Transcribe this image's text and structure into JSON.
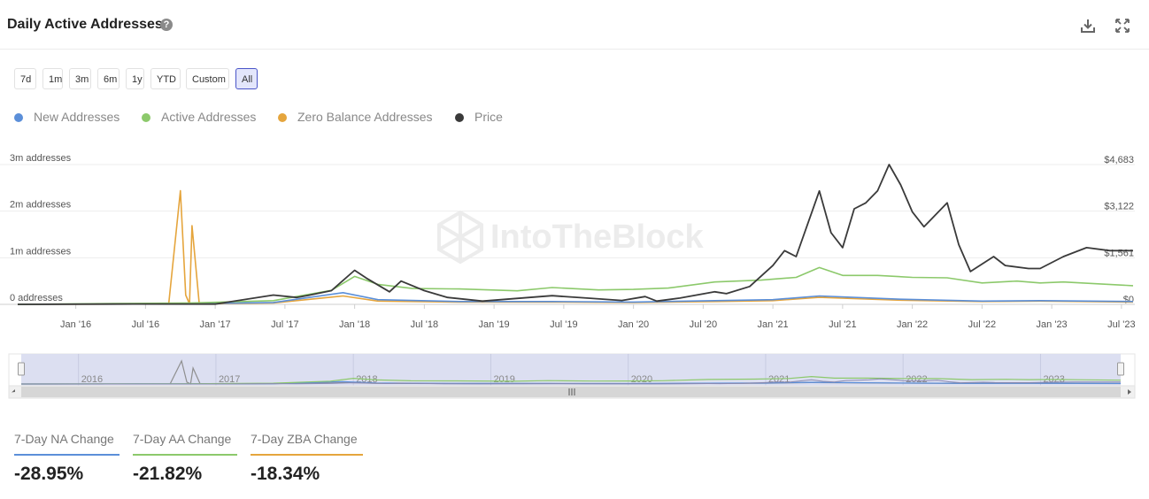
{
  "header": {
    "title": "Daily Active Addresses",
    "help_icon": "question-circle-icon",
    "download_icon": "download-icon",
    "fullscreen_icon": "expand-icon"
  },
  "range_buttons": [
    {
      "label": "7d"
    },
    {
      "label": "1m"
    },
    {
      "label": "3m"
    },
    {
      "label": "6m"
    },
    {
      "label": "1y"
    },
    {
      "label": "YTD"
    },
    {
      "label": "Custom"
    },
    {
      "label": "All",
      "active": true
    }
  ],
  "legend": [
    {
      "label": "New Addresses",
      "color": "#5b8fd9"
    },
    {
      "label": "Active Addresses",
      "color": "#8cc96b"
    },
    {
      "label": "Zero Balance Addresses",
      "color": "#e5a53d"
    },
    {
      "label": "Price",
      "color": "#3a3a3a"
    }
  ],
  "watermark": "IntoTheBlock",
  "chart_data": {
    "type": "line",
    "title": "Daily Active Addresses",
    "x_ticks": [
      "Jan '16",
      "Jul '16",
      "Jan '17",
      "Jul '17",
      "Jan '18",
      "Jul '18",
      "Jan '19",
      "Jul '19",
      "Jan '20",
      "Jul '20",
      "Jan '21",
      "Jul '21",
      "Jan '22",
      "Jul '22",
      "Jan '23",
      "Jul '23"
    ],
    "x_range": [
      "2015-08",
      "2023-08"
    ],
    "y_left": {
      "ticks": [
        "0 addresses",
        "1m addresses",
        "2m addresses",
        "3m addresses"
      ],
      "range": [
        0,
        3000000
      ]
    },
    "y_right": {
      "ticks": [
        "$0",
        "$1,561",
        "$3,122",
        "$4,683"
      ],
      "range": [
        0,
        4683
      ]
    },
    "grid": true,
    "legend_position": "top-left",
    "series": [
      {
        "name": "New Addresses",
        "axis": "left",
        "color": "#5b8fd9",
        "points": [
          [
            "2015-08",
            0
          ],
          [
            "2016-06",
            10000
          ],
          [
            "2016-11",
            15000
          ],
          [
            "2017-06",
            40000
          ],
          [
            "2017-12",
            250000
          ],
          [
            "2018-03",
            100000
          ],
          [
            "2018-10",
            60000
          ],
          [
            "2019-06",
            60000
          ],
          [
            "2020-01",
            50000
          ],
          [
            "2020-08",
            80000
          ],
          [
            "2021-01",
            100000
          ],
          [
            "2021-05",
            180000
          ],
          [
            "2021-12",
            110000
          ],
          [
            "2022-07",
            70000
          ],
          [
            "2022-12",
            80000
          ],
          [
            "2023-08",
            60000
          ]
        ]
      },
      {
        "name": "Active Addresses",
        "axis": "left",
        "color": "#8cc96b",
        "points": [
          [
            "2015-08",
            0
          ],
          [
            "2016-06",
            20000
          ],
          [
            "2016-11",
            30000
          ],
          [
            "2017-06",
            80000
          ],
          [
            "2017-11",
            300000
          ],
          [
            "2018-01",
            600000
          ],
          [
            "2018-03",
            430000
          ],
          [
            "2018-06",
            340000
          ],
          [
            "2018-10",
            330000
          ],
          [
            "2019-03",
            290000
          ],
          [
            "2019-06",
            360000
          ],
          [
            "2019-10",
            310000
          ],
          [
            "2020-01",
            320000
          ],
          [
            "2020-04",
            350000
          ],
          [
            "2020-08",
            480000
          ],
          [
            "2020-12",
            520000
          ],
          [
            "2021-03",
            580000
          ],
          [
            "2021-05",
            790000
          ],
          [
            "2021-07",
            620000
          ],
          [
            "2021-10",
            620000
          ],
          [
            "2022-01",
            580000
          ],
          [
            "2022-04",
            570000
          ],
          [
            "2022-07",
            460000
          ],
          [
            "2022-10",
            500000
          ],
          [
            "2022-12",
            460000
          ],
          [
            "2023-02",
            480000
          ],
          [
            "2023-05",
            440000
          ],
          [
            "2023-08",
            400000
          ]
        ]
      },
      {
        "name": "Zero Balance Addresses",
        "axis": "left",
        "color": "#e5a53d",
        "points": [
          [
            "2015-08",
            0
          ],
          [
            "2016-09",
            10000
          ],
          [
            "2016-10",
            2440000
          ],
          [
            "2016-10-15",
            200000
          ],
          [
            "2016-10-25",
            10000
          ],
          [
            "2016-11",
            1690000
          ],
          [
            "2016-11-20",
            10000
          ],
          [
            "2017-06",
            30000
          ],
          [
            "2017-12",
            180000
          ],
          [
            "2018-03",
            70000
          ],
          [
            "2018-10",
            50000
          ],
          [
            "2019-06",
            50000
          ],
          [
            "2020-01",
            40000
          ],
          [
            "2020-08",
            60000
          ],
          [
            "2021-01",
            80000
          ],
          [
            "2021-05",
            150000
          ],
          [
            "2021-12",
            90000
          ],
          [
            "2022-07",
            60000
          ],
          [
            "2022-12",
            70000
          ],
          [
            "2023-08",
            50000
          ]
        ]
      },
      {
        "name": "Price",
        "axis": "right",
        "color": "#3a3a3a",
        "points": [
          [
            "2015-08",
            0
          ],
          [
            "2016-06",
            12
          ],
          [
            "2017-01",
            9
          ],
          [
            "2017-06",
            310
          ],
          [
            "2017-08",
            230
          ],
          [
            "2017-09",
            300
          ],
          [
            "2017-11",
            460
          ],
          [
            "2018-01",
            1140
          ],
          [
            "2018-02",
            880
          ],
          [
            "2018-04",
            420
          ],
          [
            "2018-05",
            780
          ],
          [
            "2018-07",
            460
          ],
          [
            "2018-09",
            230
          ],
          [
            "2018-12",
            110
          ],
          [
            "2019-06",
            290
          ],
          [
            "2019-09",
            210
          ],
          [
            "2019-12",
            130
          ],
          [
            "2020-02",
            260
          ],
          [
            "2020-03",
            110
          ],
          [
            "2020-05",
            210
          ],
          [
            "2020-08",
            420
          ],
          [
            "2020-09",
            360
          ],
          [
            "2020-11",
            600
          ],
          [
            "2021-01",
            1300
          ],
          [
            "2021-02",
            1800
          ],
          [
            "2021-03",
            1600
          ],
          [
            "2021-05",
            3800
          ],
          [
            "2021-06",
            2400
          ],
          [
            "2021-07",
            1900
          ],
          [
            "2021-08",
            3200
          ],
          [
            "2021-09",
            3400
          ],
          [
            "2021-10",
            3800
          ],
          [
            "2021-11",
            4683
          ],
          [
            "2021-12",
            4000
          ],
          [
            "2022-01",
            3100
          ],
          [
            "2022-02",
            2600
          ],
          [
            "2022-04",
            3400
          ],
          [
            "2022-05",
            2000
          ],
          [
            "2022-06",
            1100
          ],
          [
            "2022-08",
            1600
          ],
          [
            "2022-09",
            1300
          ],
          [
            "2022-11",
            1200
          ],
          [
            "2022-12",
            1200
          ],
          [
            "2023-02",
            1600
          ],
          [
            "2023-04",
            1900
          ],
          [
            "2023-06",
            1800
          ],
          [
            "2023-08",
            1800
          ]
        ]
      }
    ]
  },
  "navigator": {
    "years": [
      "2016",
      "2017",
      "2018",
      "2019",
      "2020",
      "2021",
      "2022",
      "2023"
    ]
  },
  "stats": [
    {
      "label": "7-Day NA Change",
      "value": "-28.95%",
      "color": "#5b8fd9"
    },
    {
      "label": "7-Day AA Change",
      "value": "-21.82%",
      "color": "#8cc96b"
    },
    {
      "label": "7-Day ZBA Change",
      "value": "-18.34%",
      "color": "#e5a53d"
    }
  ]
}
